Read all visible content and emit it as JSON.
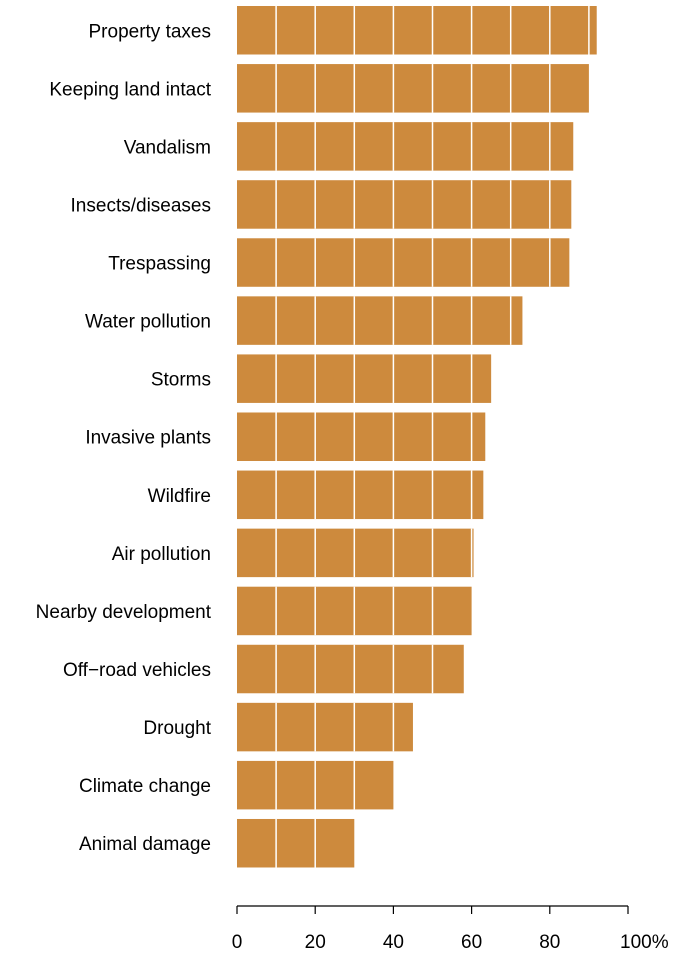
{
  "chart_data": {
    "type": "bar",
    "orientation": "horizontal",
    "categories": [
      "Property taxes",
      "Keeping land intact",
      "Vandalism",
      "Insects/diseases",
      "Trespassing",
      "Water pollution",
      "Storms",
      "Invasive plants",
      "Wildfire",
      "Air pollution",
      "Nearby development",
      "Off−road vehicles",
      "Drought",
      "Climate change",
      "Animal damage"
    ],
    "values": [
      92,
      90,
      86,
      85.5,
      85,
      73,
      65,
      63.5,
      63,
      60.5,
      60,
      58,
      45,
      40,
      30
    ],
    "xlim": [
      0,
      100
    ],
    "xticks": [
      0,
      20,
      40,
      60,
      80,
      100
    ],
    "xtick_labels": [
      "0",
      "20",
      "40",
      "60",
      "80",
      "100%"
    ],
    "bar_color": "#cd8a3d",
    "grid_line_color": "#ffffff",
    "grid": true,
    "title": "",
    "xlabel": "",
    "ylabel": ""
  }
}
